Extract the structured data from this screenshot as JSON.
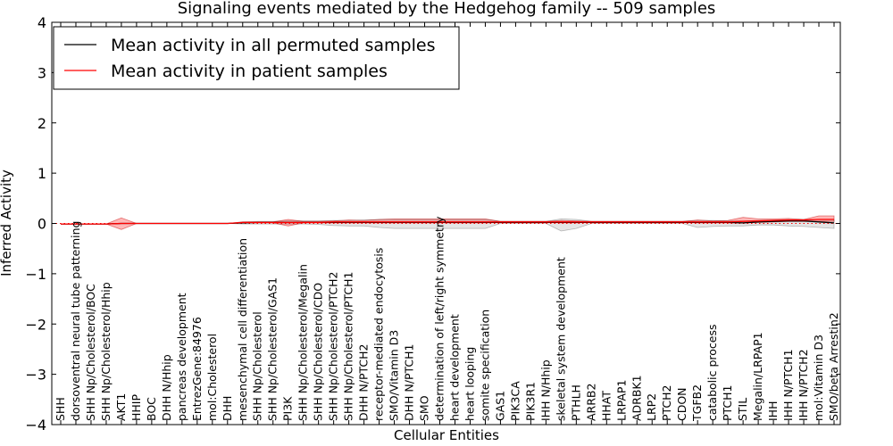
{
  "chart_data": {
    "type": "line",
    "title": "Signaling events mediated by the Hedgehog family -- 509 samples",
    "xlabel": "Cellular Entities",
    "ylabel": "Inferred Activity",
    "ylim": [
      -4,
      4
    ],
    "yticks": [
      "4",
      "3",
      "2",
      "1",
      "0",
      "−1",
      "−2",
      "−3",
      "−4"
    ],
    "ytick_values": [
      4,
      3,
      2,
      1,
      0,
      -1,
      -2,
      -3,
      -4
    ],
    "legend": {
      "placement": "top-left",
      "entries": [
        {
          "label": "Mean activity in all permuted samples",
          "color": "#000000"
        },
        {
          "label": "Mean activity in patient samples",
          "color": "#ff0000"
        }
      ]
    },
    "categories": [
      "SHH",
      "dorsoventral neural tube patterning",
      "SHH Np/Cholesterol/BOC",
      "SHH Np/Cholesterol/Hhip",
      "AKT1",
      "HHIP",
      "BOC",
      "DHH N/Hhip",
      "pancreas development",
      "EntrezGene:84976",
      "mol:Cholesterol",
      "DHH",
      "mesenchymal cell differentiation",
      "SHH Np/Cholesterol",
      "SHH Np/Cholesterol/GAS1",
      "PI3K",
      "SHH Np/Cholesterol/Megalin",
      "SHH Np/Cholesterol/CDO",
      "SHH Np/Cholesterol/PTCH2",
      "SHH Np/Cholesterol/PTCH1",
      "DHH N/PTCH2",
      "receptor-mediated endocytosis",
      "SMO/Vitamin D3",
      "DHH N/PTCH1",
      "SMO",
      "determination of left/right symmetry",
      "heart development",
      "heart looping",
      "somite specification",
      "GAS1",
      "PIK3CA",
      "PIK3R1",
      "IHH N/Hhip",
      "skeletal system development",
      "PTHLH",
      "ARRB2",
      "HHAT",
      "LRPAP1",
      "ADRBK1",
      "LRP2",
      "PTCH2",
      "CDON",
      "TGFB2",
      "catabolic process",
      "PTCH1",
      "STIL",
      "Megalin/LRPAP1",
      "IHH",
      "IHH N/PTCH1",
      "IHH N/PTCH2",
      "mol:Vitamin D3",
      "SMO/beta Arrestin2"
    ],
    "series": [
      {
        "name": "Mean activity in patient samples",
        "color": "#ff0000",
        "values": [
          -0.01,
          -0.01,
          -0.01,
          -0.01,
          0.0,
          0.0,
          0.0,
          0.0,
          0.0,
          0.0,
          0.0,
          0.0,
          0.02,
          0.02,
          0.02,
          0.02,
          0.02,
          0.02,
          0.03,
          0.03,
          0.03,
          0.03,
          0.03,
          0.03,
          0.03,
          0.03,
          0.03,
          0.03,
          0.03,
          0.03,
          0.03,
          0.03,
          0.03,
          0.03,
          0.03,
          0.03,
          0.03,
          0.03,
          0.03,
          0.03,
          0.03,
          0.03,
          0.03,
          0.03,
          0.03,
          0.04,
          0.05,
          0.06,
          0.07,
          0.07,
          0.08,
          0.08
        ],
        "band_upper": [
          -0.01,
          -0.01,
          -0.01,
          -0.01,
          0.11,
          0.0,
          0.0,
          0.0,
          0.0,
          0.0,
          0.0,
          0.0,
          0.03,
          0.03,
          0.03,
          0.08,
          0.04,
          0.04,
          0.05,
          0.07,
          0.06,
          0.08,
          0.09,
          0.09,
          0.09,
          0.09,
          0.09,
          0.09,
          0.09,
          0.04,
          0.04,
          0.04,
          0.04,
          0.06,
          0.05,
          0.04,
          0.04,
          0.04,
          0.04,
          0.04,
          0.04,
          0.04,
          0.07,
          0.05,
          0.06,
          0.12,
          0.09,
          0.09,
          0.1,
          0.08,
          0.15,
          0.15
        ],
        "band_lower": [
          -0.01,
          -0.01,
          -0.01,
          -0.01,
          -0.12,
          0.0,
          0.0,
          0.0,
          0.0,
          0.0,
          0.0,
          0.0,
          0.01,
          0.01,
          0.01,
          -0.05,
          0.01,
          0.01,
          0.01,
          0.01,
          0.01,
          0.01,
          0.01,
          0.01,
          0.01,
          0.01,
          0.01,
          0.01,
          0.01,
          0.02,
          0.02,
          0.02,
          0.02,
          0.01,
          0.01,
          0.02,
          0.02,
          0.02,
          0.02,
          0.02,
          0.02,
          0.02,
          0.01,
          0.01,
          0.01,
          0.01,
          0.02,
          0.03,
          0.04,
          0.04,
          0.04,
          0.04
        ]
      },
      {
        "name": "Mean activity in all permuted samples",
        "color": "#000000",
        "values": [
          -0.01,
          -0.01,
          -0.01,
          -0.01,
          0.0,
          0.0,
          0.0,
          0.0,
          0.0,
          0.0,
          0.0,
          0.0,
          0.01,
          0.02,
          0.02,
          0.02,
          0.02,
          0.02,
          0.02,
          0.02,
          0.02,
          0.02,
          0.02,
          0.02,
          0.02,
          0.02,
          0.02,
          0.02,
          0.02,
          0.02,
          0.02,
          0.02,
          0.02,
          0.02,
          0.02,
          0.02,
          0.02,
          0.02,
          0.02,
          0.02,
          0.02,
          0.02,
          0.02,
          0.02,
          0.02,
          0.01,
          0.03,
          0.04,
          0.05,
          0.05,
          0.03,
          0.01
        ],
        "band_upper": [
          -0.01,
          -0.01,
          -0.01,
          -0.01,
          0.0,
          0.0,
          0.0,
          0.0,
          0.0,
          0.0,
          0.0,
          0.0,
          0.03,
          0.04,
          0.04,
          0.05,
          0.05,
          0.05,
          0.06,
          0.06,
          0.07,
          0.08,
          0.08,
          0.08,
          0.08,
          0.08,
          0.08,
          0.08,
          0.08,
          0.04,
          0.04,
          0.04,
          0.04,
          0.09,
          0.08,
          0.04,
          0.04,
          0.04,
          0.04,
          0.04,
          0.04,
          0.04,
          0.06,
          0.06,
          0.05,
          0.05,
          0.06,
          0.07,
          0.08,
          0.08,
          0.08,
          0.08
        ],
        "band_lower": [
          -0.01,
          -0.01,
          -0.01,
          -0.01,
          0.0,
          0.0,
          0.0,
          0.0,
          0.0,
          0.0,
          0.0,
          0.0,
          -0.01,
          -0.01,
          -0.01,
          -0.01,
          -0.01,
          -0.02,
          -0.04,
          -0.05,
          -0.05,
          -0.08,
          -0.1,
          -0.1,
          -0.1,
          -0.1,
          -0.1,
          -0.1,
          -0.1,
          0.0,
          0.0,
          0.0,
          0.0,
          -0.15,
          -0.1,
          0.0,
          0.0,
          0.0,
          0.0,
          0.0,
          0.0,
          0.0,
          -0.08,
          -0.06,
          -0.05,
          -0.05,
          -0.03,
          -0.03,
          -0.05,
          -0.06,
          -0.08,
          -0.1
        ]
      }
    ],
    "zero_line": {
      "style": "dotted",
      "color": "#ff0000",
      "value": 0
    }
  }
}
